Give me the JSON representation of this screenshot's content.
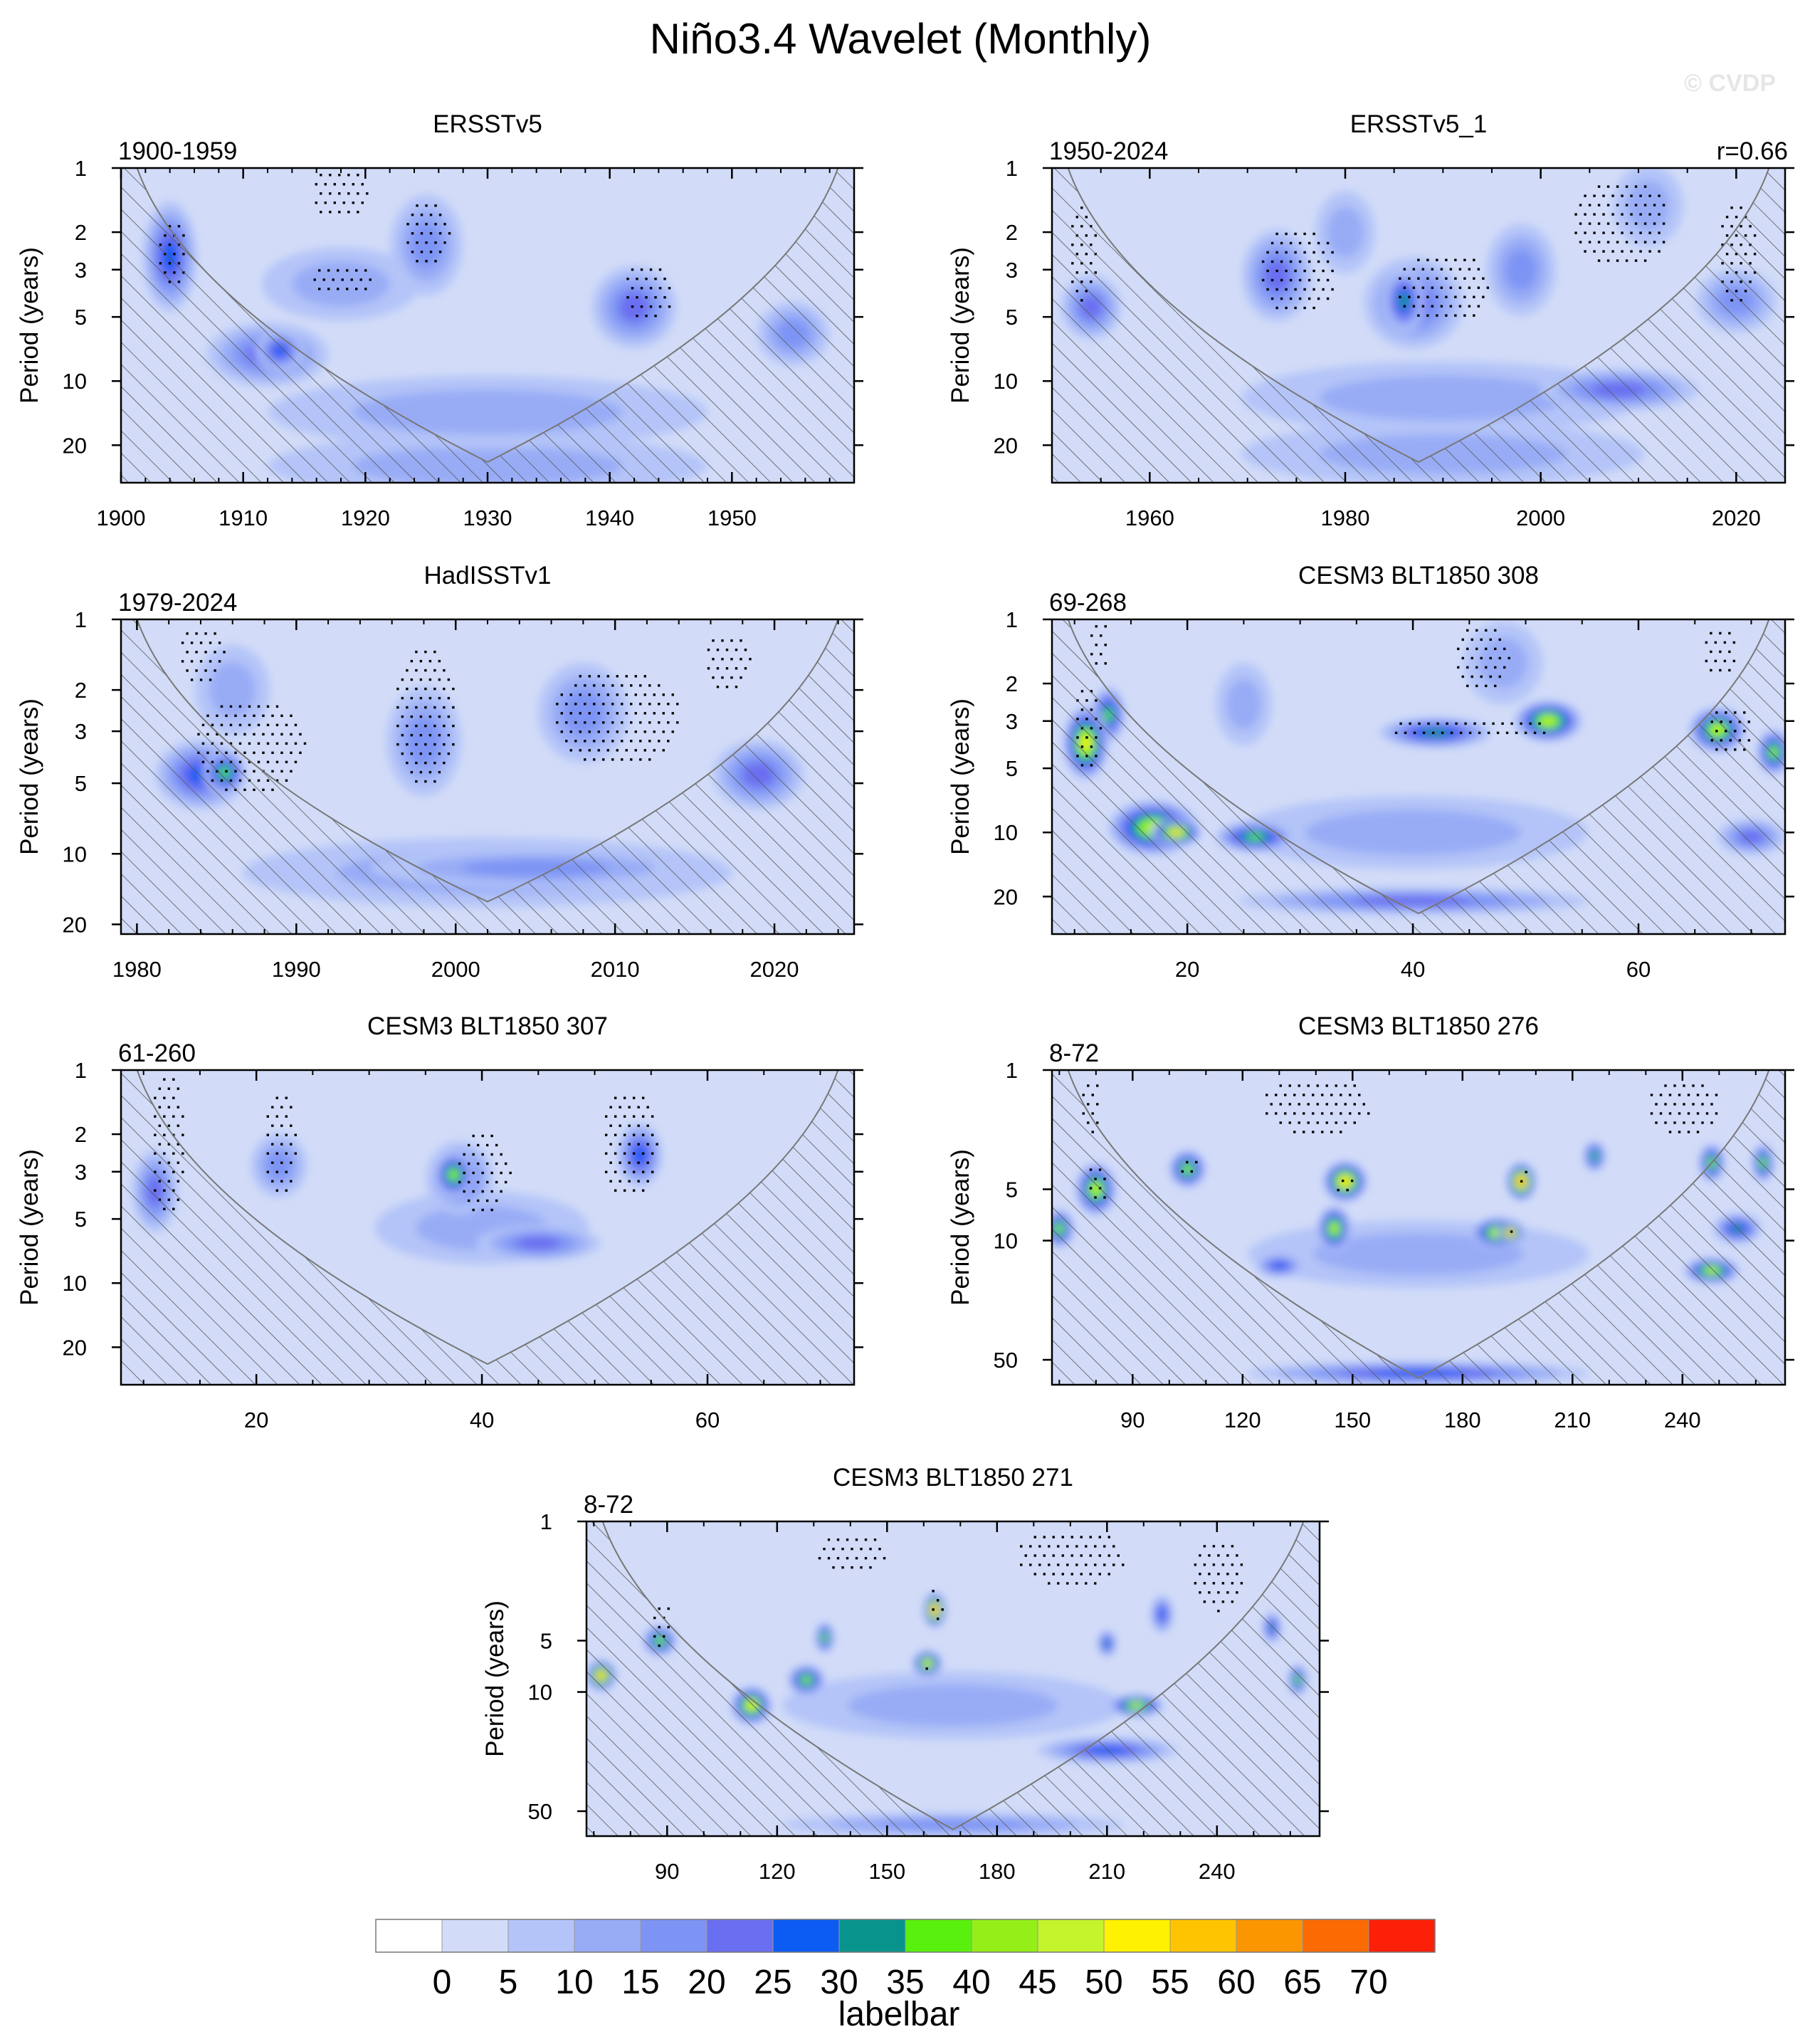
{
  "figure": {
    "title": "Niño3.4 Wavelet (Monthly)",
    "watermark": "© CVDP",
    "colors": {
      "background": "#d2dcf8",
      "hatch": "#555555",
      "coi_line": "#777777",
      "stipple": "#000000",
      "frame": "#000000"
    }
  },
  "chart_data": [
    {
      "type": "heatmap",
      "title": "ERSSTv5",
      "left_label": "1900-1959",
      "right_label": "",
      "ylabel": "Period (years)",
      "xlim": [
        1900,
        1960
      ],
      "xticks": [
        1900,
        1910,
        1920,
        1930,
        1940,
        1950
      ],
      "xminor": 2,
      "ylim": [
        1,
        30
      ],
      "yticks": [
        1,
        2,
        3,
        5,
        10,
        20
      ],
      "coi_apex": [
        1930,
        24
      ],
      "blobs": [
        {
          "x": 1904,
          "p": 2.6,
          "w": 3.5,
          "h": 0.55,
          "v": 25
        },
        {
          "x": 1912,
          "p": 7.5,
          "w": 9,
          "h": 0.3,
          "v": 22
        },
        {
          "x": 1913,
          "p": 7.2,
          "w": 3,
          "h": 0.18,
          "v": 29
        },
        {
          "x": 1925,
          "p": 2.3,
          "w": 5,
          "h": 0.5,
          "v": 17
        },
        {
          "x": 1942,
          "p": 4.5,
          "w": 6,
          "h": 0.4,
          "v": 20
        },
        {
          "x": 1955,
          "p": 6,
          "w": 5,
          "h": 0.3,
          "v": 18
        },
        {
          "x": 1930,
          "p": 14,
          "w": 35,
          "h": 0.35,
          "v": 14
        },
        {
          "x": 1930,
          "p": 25,
          "w": 35,
          "h": 0.3,
          "v": 12
        },
        {
          "x": 1918,
          "p": 3.5,
          "w": 12,
          "h": 0.35,
          "v": 11
        }
      ],
      "stipple": [
        {
          "x": 1918,
          "p": 1.3,
          "w": 5,
          "h": 0.3
        },
        {
          "x": 1925,
          "p": 2,
          "w": 4,
          "h": 0.4
        },
        {
          "x": 1918,
          "p": 3.3,
          "w": 6,
          "h": 0.2
        },
        {
          "x": 1943,
          "p": 3.8,
          "w": 4,
          "h": 0.35
        },
        {
          "x": 1904,
          "p": 2.5,
          "w": 2.5,
          "h": 0.4
        }
      ]
    },
    {
      "type": "heatmap",
      "title": "ERSSTv5_1",
      "left_label": "1950-2024",
      "right_label": "r=0.66",
      "ylabel": "Period (years)",
      "xlim": [
        1950,
        2025
      ],
      "xticks": [
        1960,
        1980,
        2000,
        2020
      ],
      "xminor": 5,
      "ylim": [
        1,
        30
      ],
      "yticks": [
        1,
        2,
        3,
        5,
        10,
        20
      ],
      "coi_apex": [
        1987.5,
        24
      ],
      "blobs": [
        {
          "x": 1973,
          "p": 3.2,
          "w": 6,
          "h": 0.45,
          "v": 20
        },
        {
          "x": 1986,
          "p": 4.2,
          "w": 3,
          "h": 0.3,
          "v": 30
        },
        {
          "x": 1987,
          "p": 4.3,
          "w": 9,
          "h": 0.45,
          "v": 20
        },
        {
          "x": 1998,
          "p": 3,
          "w": 6,
          "h": 0.45,
          "v": 18
        },
        {
          "x": 1954,
          "p": 4.5,
          "w": 5,
          "h": 0.3,
          "v": 20
        },
        {
          "x": 2020,
          "p": 4.2,
          "w": 7,
          "h": 0.3,
          "v": 18
        },
        {
          "x": 2008,
          "p": 11,
          "w": 15,
          "h": 0.18,
          "v": 24
        },
        {
          "x": 1990,
          "p": 12,
          "w": 40,
          "h": 0.35,
          "v": 14
        },
        {
          "x": 1980,
          "p": 2,
          "w": 5,
          "h": 0.4,
          "v": 13
        },
        {
          "x": 2011,
          "p": 1.5,
          "w": 6,
          "h": 0.4,
          "v": 13
        },
        {
          "x": 1990,
          "p": 22,
          "w": 40,
          "h": 0.3,
          "v": 11
        }
      ],
      "stipple": [
        {
          "x": 1975,
          "p": 3,
          "w": 8,
          "h": 0.5
        },
        {
          "x": 1990,
          "p": 3.6,
          "w": 10,
          "h": 0.4
        },
        {
          "x": 2008,
          "p": 1.8,
          "w": 10,
          "h": 0.5
        },
        {
          "x": 2020,
          "p": 2.5,
          "w": 4,
          "h": 0.6
        },
        {
          "x": 1953,
          "p": 2.5,
          "w": 3,
          "h": 0.6
        }
      ]
    },
    {
      "type": "heatmap",
      "title": "HadISSTv1",
      "left_label": "1979-2024",
      "right_label": "",
      "ylabel": "Period (years)",
      "xlim": [
        1979,
        2025
      ],
      "xticks": [
        1980,
        1990,
        2000,
        2010,
        2020
      ],
      "xminor": 2,
      "ylim": [
        1,
        22
      ],
      "yticks": [
        1,
        2,
        3,
        5,
        10,
        20
      ],
      "coi_apex": [
        2002,
        16
      ],
      "blobs": [
        {
          "x": 1984,
          "p": 4.6,
          "w": 5,
          "h": 0.3,
          "v": 26
        },
        {
          "x": 1985.5,
          "p": 4.5,
          "w": 2,
          "h": 0.18,
          "v": 38
        },
        {
          "x": 1998,
          "p": 3.3,
          "w": 4,
          "h": 0.5,
          "v": 19
        },
        {
          "x": 2019,
          "p": 4.6,
          "w": 5,
          "h": 0.3,
          "v": 20
        },
        {
          "x": 2008,
          "p": 2.5,
          "w": 5,
          "h": 0.45,
          "v": 15
        },
        {
          "x": 2005,
          "p": 11.5,
          "w": 20,
          "h": 0.15,
          "v": 19
        },
        {
          "x": 2002,
          "p": 12,
          "w": 30,
          "h": 0.3,
          "v": 14
        },
        {
          "x": 1986,
          "p": 2,
          "w": 4,
          "h": 0.4,
          "v": 12
        }
      ],
      "stipple": [
        {
          "x": 1987,
          "p": 3.5,
          "w": 7,
          "h": 0.5
        },
        {
          "x": 1998,
          "p": 2.5,
          "w": 4,
          "h": 0.7
        },
        {
          "x": 2010,
          "p": 2.6,
          "w": 8,
          "h": 0.5
        },
        {
          "x": 1984,
          "p": 1.4,
          "w": 3,
          "h": 0.3
        },
        {
          "x": 2017,
          "p": 1.5,
          "w": 3,
          "h": 0.3
        }
      ]
    },
    {
      "type": "heatmap",
      "title": "CESM3 BLT1850 308",
      "left_label": "69-268",
      "right_label": "",
      "ylabel": "Period (years)",
      "xlim": [
        8,
        73
      ],
      "xticks": [
        20,
        40,
        60
      ],
      "xminor": 5,
      "ylim": [
        1,
        30
      ],
      "yticks": [
        1,
        2,
        3,
        5,
        10,
        20
      ],
      "coi_apex": [
        40.5,
        24
      ],
      "blobs": [
        {
          "x": 11,
          "p": 3.8,
          "w": 3,
          "h": 0.35,
          "v": 50
        },
        {
          "x": 13,
          "p": 2.8,
          "w": 2,
          "h": 0.25,
          "v": 38
        },
        {
          "x": 17,
          "p": 9.5,
          "w": 7,
          "h": 0.25,
          "v": 48
        },
        {
          "x": 19,
          "p": 10,
          "w": 3.5,
          "h": 0.1,
          "v": 55
        },
        {
          "x": 26,
          "p": 10.5,
          "w": 6,
          "h": 0.12,
          "v": 36
        },
        {
          "x": 52,
          "p": 3,
          "w": 5,
          "h": 0.18,
          "v": 45
        },
        {
          "x": 42,
          "p": 3.4,
          "w": 9,
          "h": 0.12,
          "v": 30
        },
        {
          "x": 67,
          "p": 3.3,
          "w": 4,
          "h": 0.2,
          "v": 45
        },
        {
          "x": 72,
          "p": 4.2,
          "w": 2,
          "h": 0.2,
          "v": 40
        },
        {
          "x": 40,
          "p": 21,
          "w": 30,
          "h": 0.1,
          "v": 24
        },
        {
          "x": 70,
          "p": 10.5,
          "w": 5,
          "h": 0.15,
          "v": 22
        },
        {
          "x": 40,
          "p": 10,
          "w": 30,
          "h": 0.35,
          "v": 12
        },
        {
          "x": 25,
          "p": 2.5,
          "w": 4,
          "h": 0.4,
          "v": 14
        },
        {
          "x": 48,
          "p": 1.6,
          "w": 6,
          "h": 0.4,
          "v": 11
        }
      ],
      "stipple": [
        {
          "x": 11,
          "p": 3.2,
          "w": 2.5,
          "h": 0.5
        },
        {
          "x": 45,
          "p": 3.2,
          "w": 14,
          "h": 0.15
        },
        {
          "x": 68,
          "p": 3.3,
          "w": 4,
          "h": 0.3
        },
        {
          "x": 46,
          "p": 1.5,
          "w": 5,
          "h": 0.4
        },
        {
          "x": 67,
          "p": 1.4,
          "w": 3,
          "h": 0.3
        },
        {
          "x": 12,
          "p": 1.3,
          "w": 2,
          "h": 0.3
        }
      ]
    },
    {
      "type": "heatmap",
      "title": "CESM3 BLT1850 307",
      "left_label": "61-260",
      "right_label": "",
      "ylabel": "Period (years)",
      "xlim": [
        8,
        73
      ],
      "xticks": [
        20,
        40,
        60
      ],
      "xminor": 5,
      "ylim": [
        1,
        30
      ],
      "yticks": [
        1,
        2,
        3,
        5,
        10,
        20
      ],
      "coi_apex": [
        40.5,
        24
      ],
      "blobs": [
        {
          "x": 37.5,
          "p": 3.1,
          "w": 2.5,
          "h": 0.2,
          "v": 42
        },
        {
          "x": 38,
          "p": 3.2,
          "w": 5,
          "h": 0.35,
          "v": 22
        },
        {
          "x": 45,
          "p": 6.5,
          "w": 10,
          "h": 0.15,
          "v": 22
        },
        {
          "x": 54,
          "p": 2.5,
          "w": 3,
          "h": 0.3,
          "v": 28
        },
        {
          "x": 11,
          "p": 3.7,
          "w": 3,
          "h": 0.4,
          "v": 22
        },
        {
          "x": 22,
          "p": 2.8,
          "w": 4,
          "h": 0.3,
          "v": 18
        },
        {
          "x": 40,
          "p": 5.5,
          "w": 18,
          "h": 0.35,
          "v": 11
        }
      ],
      "stipple": [
        {
          "x": 40,
          "p": 3,
          "w": 5,
          "h": 0.5
        },
        {
          "x": 53,
          "p": 2.2,
          "w": 5,
          "h": 0.6
        },
        {
          "x": 12,
          "p": 2.2,
          "w": 3,
          "h": 0.8
        },
        {
          "x": 22,
          "p": 2.2,
          "w": 3,
          "h": 0.6
        }
      ]
    },
    {
      "type": "heatmap",
      "title": "CESM3 BLT1850 276",
      "left_label": "8-72",
      "right_label": "",
      "ylabel": "Period (years)",
      "xlim": [
        68,
        268
      ],
      "xticks": [
        90,
        120,
        150,
        180,
        210,
        240
      ],
      "xminor": 10,
      "ylim": [
        1,
        70
      ],
      "yticks": [
        1,
        5,
        10,
        50
      ],
      "coi_apex": [
        168,
        64
      ],
      "blobs": [
        {
          "x": 80,
          "p": 5,
          "w": 8,
          "h": 0.3,
          "v": 47
        },
        {
          "x": 70,
          "p": 8.5,
          "w": 5,
          "h": 0.2,
          "v": 42
        },
        {
          "x": 105,
          "p": 3.8,
          "w": 7,
          "h": 0.2,
          "v": 40
        },
        {
          "x": 148,
          "p": 4.5,
          "w": 9,
          "h": 0.22,
          "v": 55
        },
        {
          "x": 145,
          "p": 8.5,
          "w": 6,
          "h": 0.25,
          "v": 45
        },
        {
          "x": 196,
          "p": 4.5,
          "w": 5,
          "h": 0.2,
          "v": 65
        },
        {
          "x": 190,
          "p": 9,
          "w": 12,
          "h": 0.15,
          "v": 52
        },
        {
          "x": 193,
          "p": 9,
          "w": 4,
          "h": 0.08,
          "v": 68
        },
        {
          "x": 248,
          "p": 15,
          "w": 12,
          "h": 0.12,
          "v": 45
        },
        {
          "x": 248,
          "p": 3.5,
          "w": 4,
          "h": 0.2,
          "v": 40
        },
        {
          "x": 262,
          "p": 3.5,
          "w": 3,
          "h": 0.2,
          "v": 40
        },
        {
          "x": 216,
          "p": 3.2,
          "w": 3,
          "h": 0.15,
          "v": 38
        },
        {
          "x": 255,
          "p": 8.5,
          "w": 10,
          "h": 0.15,
          "v": 30
        },
        {
          "x": 168,
          "p": 60,
          "w": 90,
          "h": 0.1,
          "v": 26
        },
        {
          "x": 168,
          "p": 12,
          "w": 90,
          "h": 0.4,
          "v": 14
        },
        {
          "x": 130,
          "p": 14,
          "w": 10,
          "h": 0.1,
          "v": 28
        }
      ],
      "stipple": [
        {
          "x": 80,
          "p": 4.5,
          "w": 6,
          "h": 0.3
        },
        {
          "x": 105,
          "p": 3.5,
          "w": 6,
          "h": 0.15
        },
        {
          "x": 148,
          "p": 4.5,
          "w": 7,
          "h": 0.15
        },
        {
          "x": 193,
          "p": 8.5,
          "w": 5,
          "h": 0.1
        },
        {
          "x": 196,
          "p": 4,
          "w": 3,
          "h": 0.15
        },
        {
          "x": 140,
          "p": 1.6,
          "w": 30,
          "h": 0.4
        },
        {
          "x": 240,
          "p": 1.6,
          "w": 20,
          "h": 0.4
        },
        {
          "x": 78,
          "p": 1.6,
          "w": 6,
          "h": 0.4
        }
      ]
    },
    {
      "type": "heatmap",
      "title": "CESM3 BLT1850 271",
      "left_label": "8-72",
      "right_label": "",
      "ylabel": "Period (years)",
      "xlim": [
        68,
        268
      ],
      "xticks": [
        90,
        120,
        150,
        180,
        210,
        240
      ],
      "xminor": 10,
      "ylim": [
        1,
        70
      ],
      "yticks": [
        1,
        5,
        10,
        50
      ],
      "coi_apex": [
        168,
        64
      ],
      "blobs": [
        {
          "x": 72,
          "p": 8,
          "w": 5,
          "h": 0.15,
          "v": 60
        },
        {
          "x": 88,
          "p": 5,
          "w": 6,
          "h": 0.15,
          "v": 42
        },
        {
          "x": 113,
          "p": 12,
          "w": 8,
          "h": 0.2,
          "v": 52
        },
        {
          "x": 128,
          "p": 8.5,
          "w": 7,
          "h": 0.15,
          "v": 42
        },
        {
          "x": 163,
          "p": 3.3,
          "w": 3,
          "h": 0.18,
          "v": 65
        },
        {
          "x": 161,
          "p": 6.8,
          "w": 5,
          "h": 0.12,
          "v": 50
        },
        {
          "x": 133,
          "p": 4.8,
          "w": 2,
          "h": 0.15,
          "v": 40
        },
        {
          "x": 218,
          "p": 12,
          "w": 12,
          "h": 0.09,
          "v": 45
        },
        {
          "x": 210,
          "p": 5.2,
          "w": 2,
          "h": 0.12,
          "v": 32
        },
        {
          "x": 262,
          "p": 8.5,
          "w": 2,
          "h": 0.15,
          "v": 40
        },
        {
          "x": 255,
          "p": 4.2,
          "w": 2,
          "h": 0.15,
          "v": 32
        },
        {
          "x": 225,
          "p": 3.5,
          "w": 3,
          "h": 0.2,
          "v": 26
        },
        {
          "x": 210,
          "p": 22,
          "w": 35,
          "h": 0.12,
          "v": 26
        },
        {
          "x": 168,
          "p": 60,
          "w": 90,
          "h": 0.1,
          "v": 18
        },
        {
          "x": 168,
          "p": 12,
          "w": 90,
          "h": 0.4,
          "v": 12
        }
      ],
      "stipple": [
        {
          "x": 88,
          "p": 4,
          "w": 6,
          "h": 0.35
        },
        {
          "x": 163,
          "p": 3,
          "w": 4,
          "h": 0.3
        },
        {
          "x": 160,
          "p": 7,
          "w": 4,
          "h": 0.1
        },
        {
          "x": 200,
          "p": 1.6,
          "w": 30,
          "h": 0.4
        },
        {
          "x": 140,
          "p": 1.5,
          "w": 20,
          "h": 0.3
        },
        {
          "x": 240,
          "p": 2,
          "w": 15,
          "h": 0.5
        }
      ]
    }
  ],
  "labelbar": {
    "label": "labelbar",
    "ticks": [
      "0",
      "5",
      "10",
      "15",
      "20",
      "25",
      "30",
      "35",
      "40",
      "45",
      "50",
      "55",
      "60",
      "65",
      "70"
    ],
    "colors": [
      "#ffffff",
      "#d2dcf8",
      "#b4c4f8",
      "#98acf6",
      "#7e94f4",
      "#6a6ef0",
      "#0c5cf4",
      "#08948c",
      "#5af00e",
      "#94ee18",
      "#c4f42c",
      "#fef200",
      "#fec400",
      "#fc9600",
      "#fc6a04",
      "#fc2008"
    ]
  }
}
